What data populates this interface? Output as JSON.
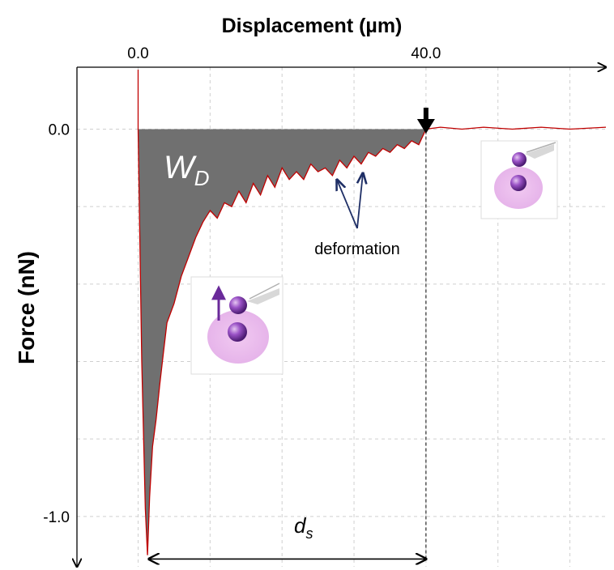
{
  "chart_data": {
    "type": "area",
    "xlabel": "Displacement (µm)",
    "ylabel": "Force (nN)",
    "x_ticks": [
      "0.0",
      "40.0"
    ],
    "y_ticks": [
      "0.0",
      "-1.0"
    ],
    "xlim": [
      -8.5,
      65
    ],
    "ylim": [
      -1.13,
      0.16
    ],
    "grid": true,
    "grid_style": "dashed",
    "curve_color": "#c00000",
    "fill_color": "#707070",
    "x": [
      0.0,
      0.5,
      1.0,
      1.3,
      1.6,
      2.0,
      2.5,
      3.0,
      3.5,
      4.0,
      5.0,
      6.0,
      7.0,
      8.0,
      9.0,
      10.0,
      11.0,
      12.0,
      13.0,
      14.0,
      15.0,
      16.0,
      17.0,
      18.0,
      19.0,
      20.0,
      21.0,
      22.0,
      23.0,
      24.0,
      25.0,
      26.0,
      27.0,
      28.0,
      29.0,
      30.0,
      31.0,
      32.0,
      33.0,
      34.0,
      35.0,
      36.0,
      37.0,
      38.0,
      39.0,
      40.0,
      42.0,
      45.0,
      48.0,
      52.0,
      56.0,
      60.0,
      65.0
    ],
    "y": [
      0.0,
      -0.6,
      -0.98,
      -1.1,
      -0.95,
      -0.82,
      -0.75,
      -0.66,
      -0.58,
      -0.5,
      -0.45,
      -0.38,
      -0.33,
      -0.28,
      -0.24,
      -0.21,
      -0.23,
      -0.19,
      -0.2,
      -0.16,
      -0.19,
      -0.14,
      -0.17,
      -0.12,
      -0.15,
      -0.1,
      -0.13,
      -0.11,
      -0.13,
      -0.09,
      -0.11,
      -0.1,
      -0.12,
      -0.08,
      -0.1,
      -0.07,
      -0.09,
      -0.06,
      -0.07,
      -0.05,
      -0.06,
      -0.04,
      -0.05,
      -0.03,
      -0.04,
      0.0,
      0.005,
      0.0,
      0.005,
      0.0,
      0.005,
      0.0,
      0.005
    ],
    "shaded_region": {
      "x_from": 0.0,
      "x_to": 40.0
    },
    "annotations": [
      {
        "text_main": "W",
        "text_sub": "D"
      },
      {
        "text": "deformation"
      },
      {
        "text_main": "d",
        "text_sub": "s",
        "x_from": 1.5,
        "x_to": 40.0,
        "y": -1.11
      }
    ],
    "rupture_marker_x": 40.0
  }
}
